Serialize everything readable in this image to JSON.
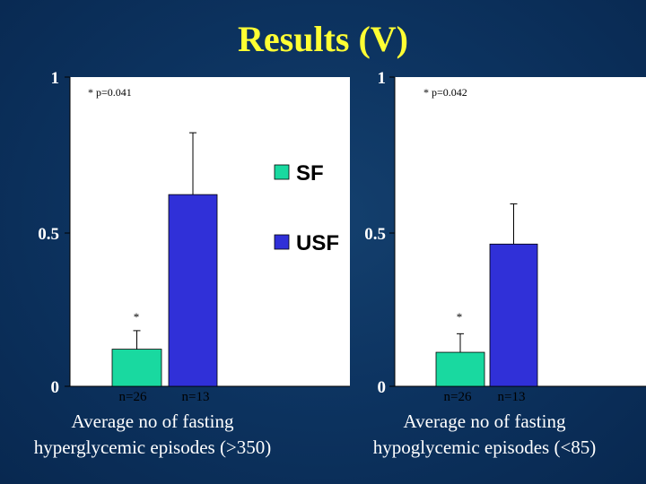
{
  "title": "Results (V)",
  "colors": {
    "sf": "#19d9a0",
    "usf": "#3030d8",
    "title": "#ffff33",
    "panel": "#ffffff"
  },
  "legend": [
    "SF",
    "USF"
  ],
  "chart_data": [
    {
      "type": "bar",
      "categories": [
        "n=26",
        "n=13"
      ],
      "series": [
        {
          "name": "SF",
          "value": 0.12,
          "error": 0.06
        },
        {
          "name": "USF",
          "value": 0.62,
          "error": 0.2
        }
      ],
      "ylim": [
        0,
        1
      ],
      "yticks": [
        "0",
        "0.5",
        "1"
      ],
      "annotation": "* p=0.041",
      "star": "*",
      "xlabel": [
        "Average no of fasting",
        "hyperglycemic episodes (>350)"
      ]
    },
    {
      "type": "bar",
      "categories": [
        "n=26",
        "n=13"
      ],
      "series": [
        {
          "name": "SF",
          "value": 0.11,
          "error": 0.06
        },
        {
          "name": "USF",
          "value": 0.46,
          "error": 0.13
        }
      ],
      "ylim": [
        0,
        1
      ],
      "yticks": [
        "0",
        "0.5",
        "1"
      ],
      "annotation": "* p=0.042",
      "star": "*",
      "xlabel": [
        "Average no of fasting",
        "hypoglycemic episodes (<85)"
      ]
    }
  ]
}
